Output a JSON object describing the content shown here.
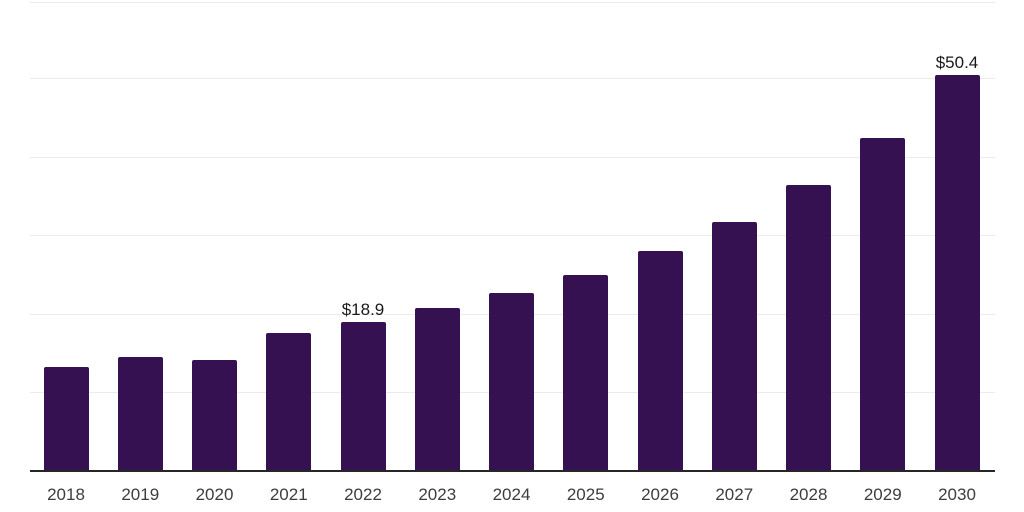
{
  "chart_data": {
    "type": "bar",
    "title": "",
    "xlabel": "",
    "ylabel": "",
    "categories": [
      "2018",
      "2019",
      "2020",
      "2021",
      "2022",
      "2023",
      "2024",
      "2025",
      "2026",
      "2027",
      "2028",
      "2029",
      "2030"
    ],
    "values": [
      13.2,
      14.5,
      14.1,
      17.6,
      18.9,
      20.7,
      22.7,
      25.0,
      28.0,
      31.7,
      36.4,
      42.4,
      50.4
    ],
    "data_labels": [
      {
        "category": "2022",
        "text": "$18.9"
      },
      {
        "category": "2030",
        "text": "$50.4"
      }
    ],
    "ylim": [
      0,
      60
    ],
    "grid": "horizontal",
    "gridline_step": 10,
    "legend": "none",
    "colors": {
      "bar": "#361152",
      "axis": "#262626",
      "gridline": "#ececec",
      "tick_label": "#3d3d3d",
      "value_label": "#1a1a1a",
      "background": "#ffffff"
    }
  }
}
